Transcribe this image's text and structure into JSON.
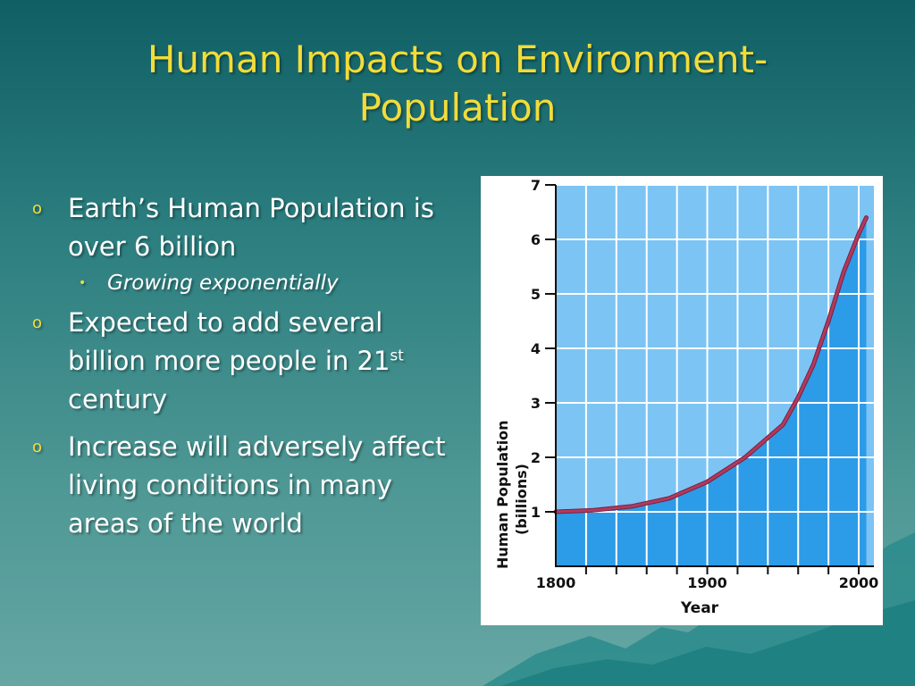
{
  "slide": {
    "title_line1": "Human Impacts on Environment-",
    "title_line2": "Population",
    "bullets": {
      "b1_text": "Earth’s Human Population is over 6 billion",
      "b1_sub": "Growing exponentially",
      "b2_text_before": "Expected to add several billion more people in 21",
      "b2_sup": "st",
      "b2_text_after": " century",
      "b3_text": "Increase will adversely affect living conditions in many areas of the world"
    }
  },
  "chart_data": {
    "type": "area",
    "title": "",
    "xlabel": "Year",
    "ylabel": "Human Population",
    "ylabel_units": "(billions)",
    "x_tick_labels": [
      "1800",
      "1900",
      "2000"
    ],
    "y_tick_labels": [
      "1",
      "2",
      "3",
      "4",
      "5",
      "6",
      "7"
    ],
    "xlim": [
      1800,
      2010
    ],
    "ylim": [
      0,
      7
    ],
    "grid": true,
    "series": [
      {
        "x": [
          1800,
          1825,
          1850,
          1875,
          1900,
          1925,
          1950,
          1960,
          1970,
          1980,
          1990,
          2000,
          2005
        ],
        "y": [
          1.0,
          1.03,
          1.1,
          1.25,
          1.55,
          2.0,
          2.6,
          3.1,
          3.7,
          4.5,
          5.4,
          6.1,
          6.4
        ]
      }
    ],
    "colors": {
      "plot_bg": "#7cc4f4",
      "area_fill": "#2c9be8",
      "line": "#b03a5e",
      "grid": "#ffffff"
    }
  }
}
